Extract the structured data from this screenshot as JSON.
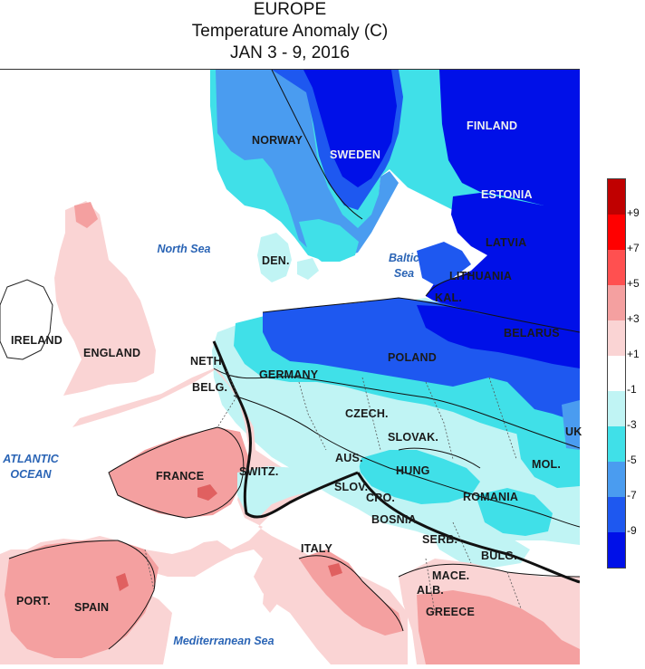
{
  "title": {
    "line1": "EUROPE",
    "line2": "Temperature Anomaly (C)",
    "line3": "JAN 3 - 9, 2016"
  },
  "seas": {
    "north_sea": "North Sea",
    "baltic_sea": "Baltic Sea",
    "atlantic_ocean": "ATLANTIC OCEAN",
    "mediterranean_sea": "Mediterranean Sea"
  },
  "countries": {
    "norway": "NORWAY",
    "sweden": "SWEDEN",
    "finland": "FINLAND",
    "estonia": "ESTONIA",
    "latvia": "LATVIA",
    "lithuania": "LITHUANIA",
    "kal": "KAL.",
    "belarus": "BELARUS",
    "den": "DEN.",
    "ireland": "IRELAND",
    "england": "ENGLAND",
    "neth": "NETH.",
    "belg": "BELG.",
    "germany": "GERMANY",
    "poland": "POLAND",
    "czech": "CZECH.",
    "slovak": "SLOVAK.",
    "aus": "AUS.",
    "hung": "HUNG",
    "france": "FRANCE",
    "switz": "SWITZ.",
    "slov": "SLOV.",
    "cro": "CRO.",
    "bosnia": "BOSNIA",
    "romania": "ROMANIA",
    "mol": "MOL.",
    "ukr": "UK",
    "serb": "SERB.",
    "bulg": "BULG.",
    "italy": "ITALY",
    "mace": "MACE.",
    "alb": "ALB.",
    "greece": "GREECE",
    "port": "PORT.",
    "spain": "SPAIN"
  },
  "legend": {
    "labels": [
      "+9",
      "+7",
      "+5",
      "+3",
      "+1",
      "-1",
      "-3",
      "-5",
      "-7",
      "-9"
    ],
    "colors": [
      "#c00000",
      "#ff0000",
      "#ff5050",
      "#f4a0a0",
      "#fad4d4",
      "#ffffff",
      "#c0f4f4",
      "#40e0e8",
      "#4a9cf0",
      "#1e58f0",
      "#0010e8"
    ]
  },
  "colors": {
    "ocean": "#ffffff",
    "warm_1": "#fad4d4",
    "warm_3": "#f4a0a0",
    "warm_5": "#e06060",
    "cold_1": "#c0f4f4",
    "cold_3": "#40e0e8",
    "cold_5": "#4a9cf0",
    "cold_7": "#1e58f0",
    "cold_9": "#0010e8"
  }
}
